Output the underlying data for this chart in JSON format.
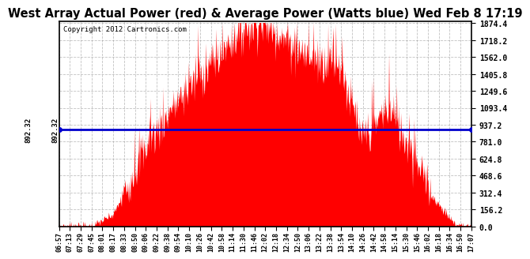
{
  "title": "West Array Actual Power (red) & Average Power (Watts blue) Wed Feb 8 17:19",
  "copyright": "Copyright 2012 Cartronics.com",
  "ymax": 1874.4,
  "ymin": 0.0,
  "yticks": [
    0.0,
    156.2,
    312.4,
    468.6,
    624.8,
    781.0,
    937.2,
    1093.4,
    1249.6,
    1405.8,
    1562.0,
    1718.2,
    1874.4
  ],
  "avg_power": 892.32,
  "fill_color": "#FF0000",
  "line_color": "#0000CC",
  "bg_color": "#FFFFFF",
  "grid_color": "#999999",
  "title_fontsize": 10.5,
  "xtick_labels": [
    "06:57",
    "07:13",
    "07:29",
    "07:45",
    "08:01",
    "08:17",
    "08:33",
    "08:50",
    "09:06",
    "09:22",
    "09:38",
    "09:54",
    "10:10",
    "10:26",
    "10:42",
    "10:58",
    "11:14",
    "11:30",
    "11:46",
    "12:02",
    "12:18",
    "12:34",
    "12:50",
    "13:06",
    "13:22",
    "13:38",
    "13:54",
    "14:10",
    "14:26",
    "14:42",
    "14:58",
    "15:14",
    "15:30",
    "15:46",
    "16:02",
    "16:18",
    "16:34",
    "16:50",
    "17:07"
  ]
}
